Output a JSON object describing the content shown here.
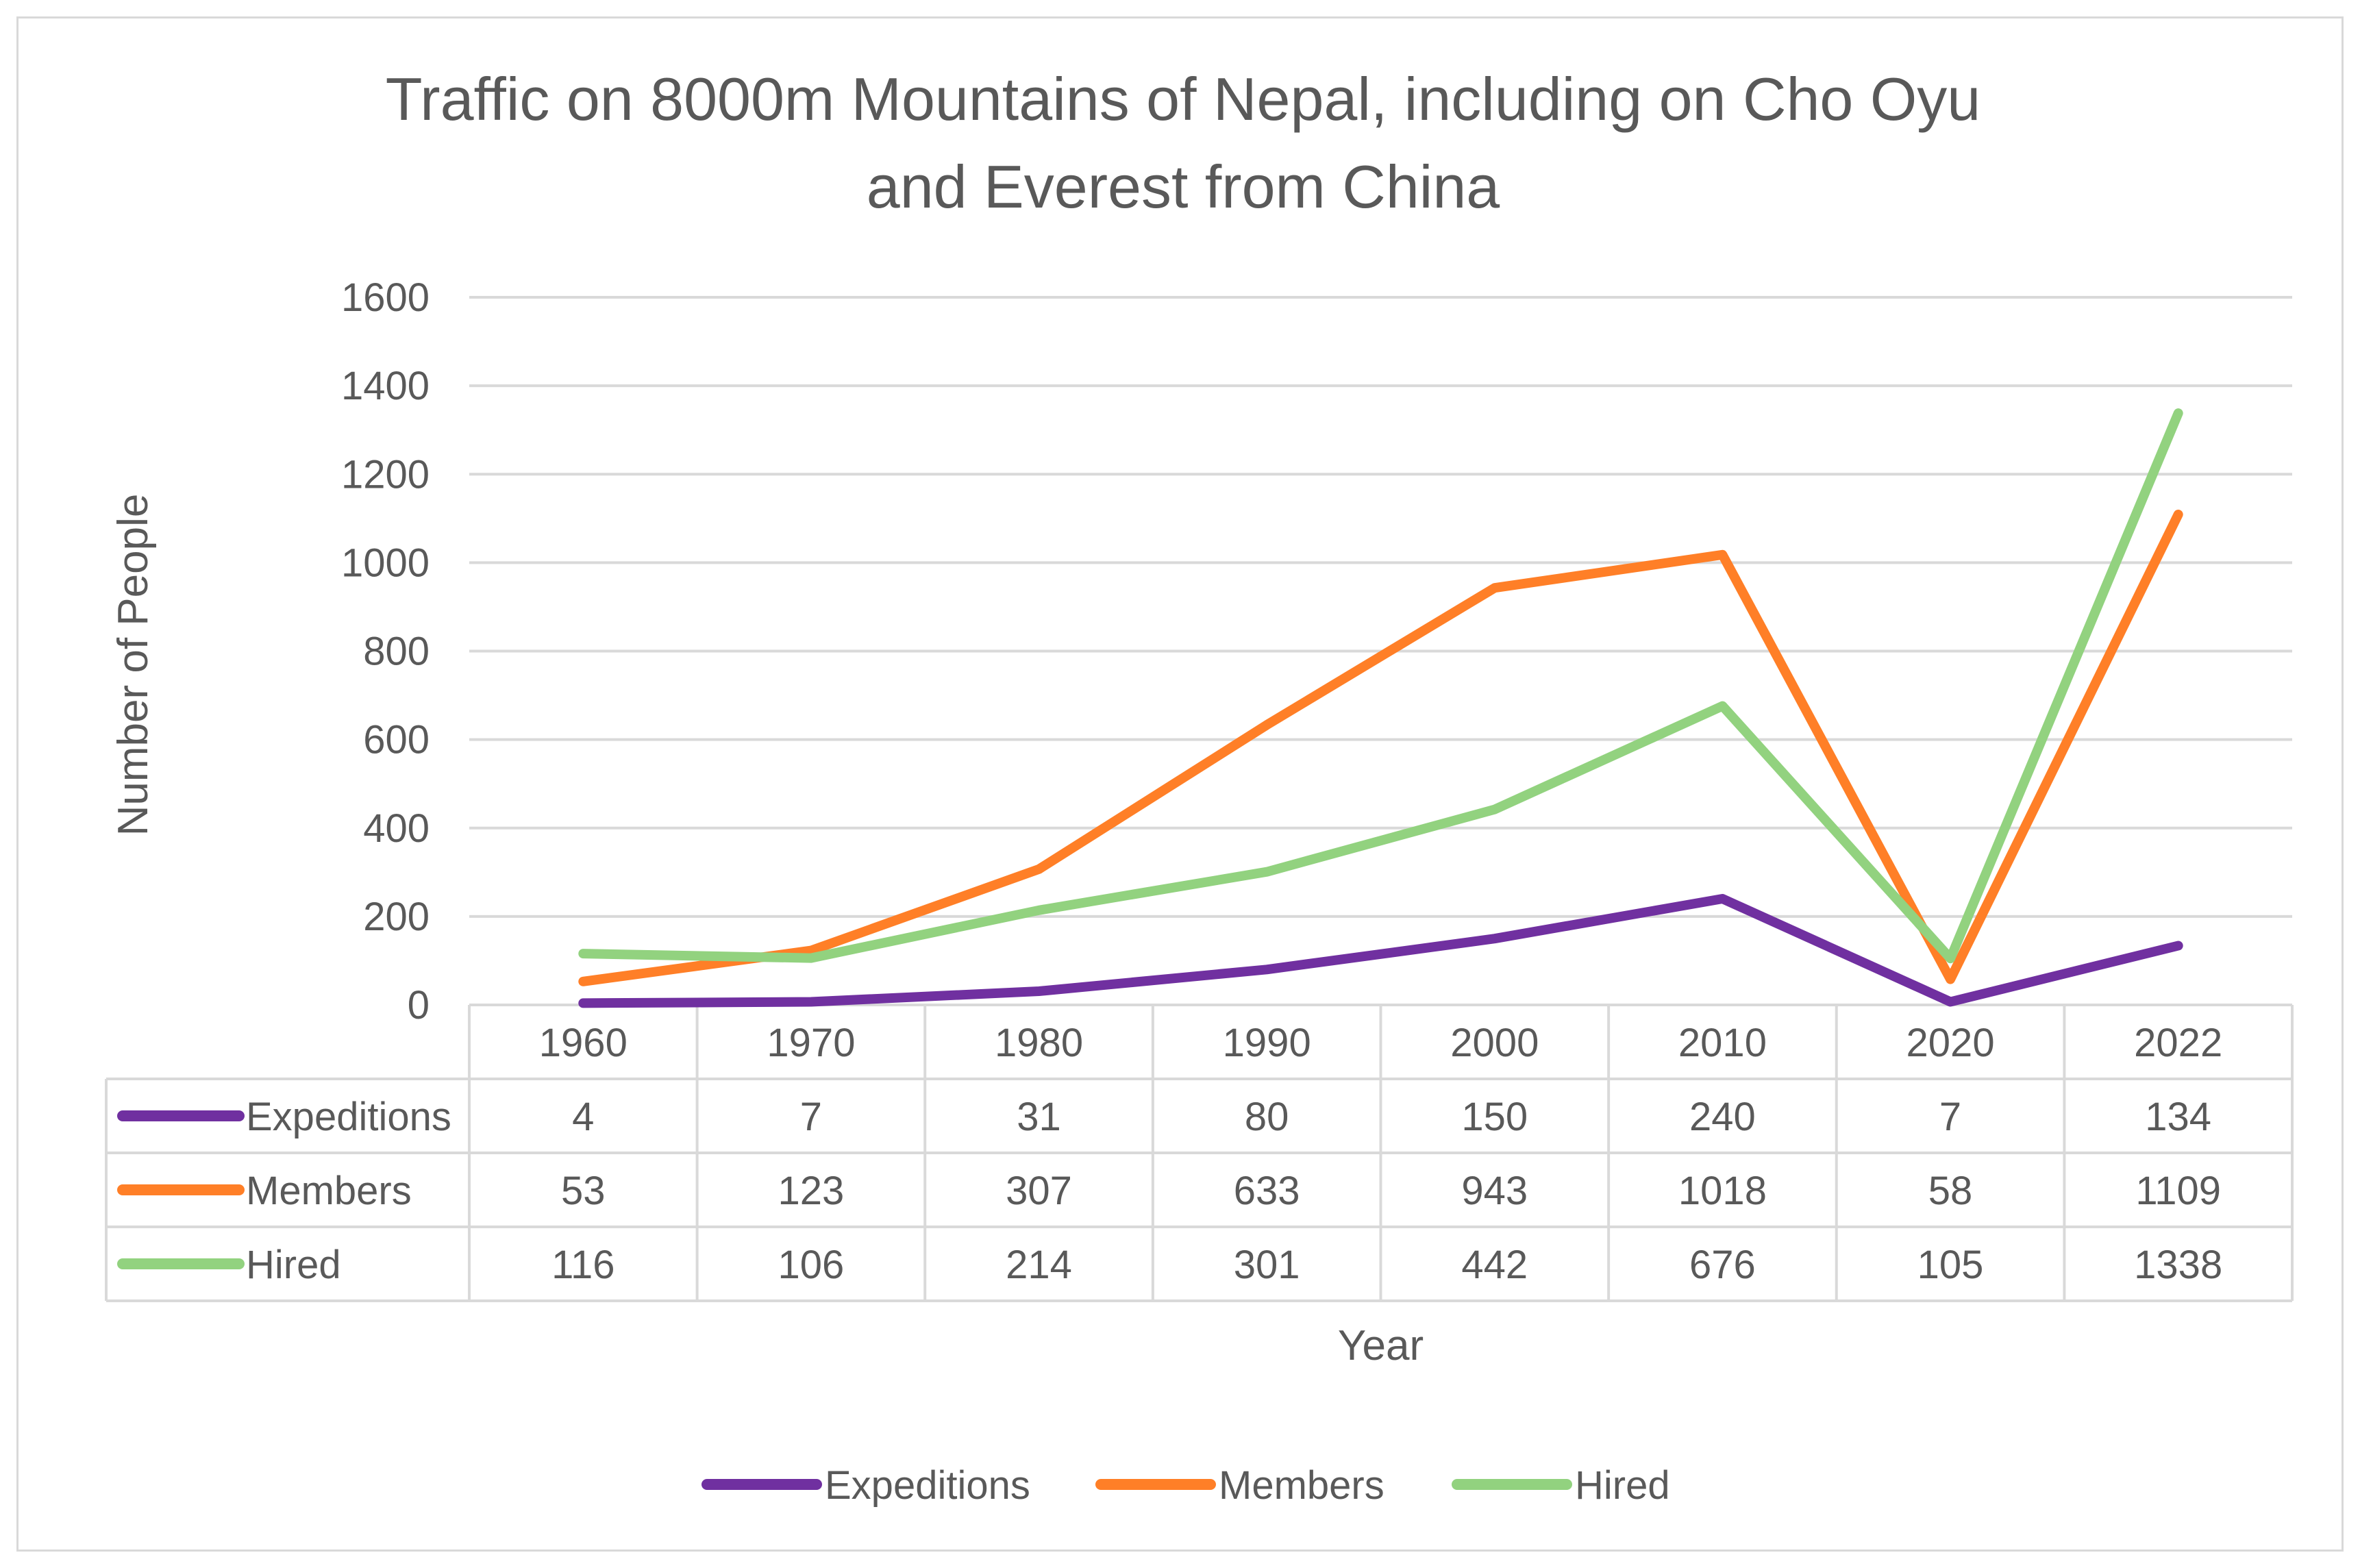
{
  "chart_data": {
    "type": "line",
    "title_lines": [
      "Traffic on 8000m Mountains of Nepal, including on Cho Oyu",
      "and Everest from China"
    ],
    "xlabel": "Year",
    "ylabel": "Number of People",
    "ylim": [
      0,
      1600
    ],
    "yticks": [
      "0",
      "200",
      "400",
      "600",
      "800",
      "1000",
      "1200",
      "1400",
      "1600"
    ],
    "ytick_values": [
      0,
      200,
      400,
      600,
      800,
      1000,
      1200,
      1400,
      1600
    ],
    "categories": [
      "1960",
      "1970",
      "1980",
      "1990",
      "2000",
      "2010",
      "2020",
      "2022"
    ],
    "grid": true,
    "legend": "bottom",
    "data_table": true,
    "series": [
      {
        "name": "Expeditions",
        "color": "#7030a0",
        "values": [
          4,
          7,
          31,
          80,
          150,
          240,
          7,
          134
        ]
      },
      {
        "name": "Members",
        "color": "#ff7f27",
        "values": [
          53,
          123,
          307,
          633,
          943,
          1018,
          58,
          1109
        ]
      },
      {
        "name": "Hired",
        "color": "#92d27f",
        "values": [
          116,
          106,
          214,
          301,
          442,
          676,
          105,
          1338
        ]
      }
    ]
  }
}
